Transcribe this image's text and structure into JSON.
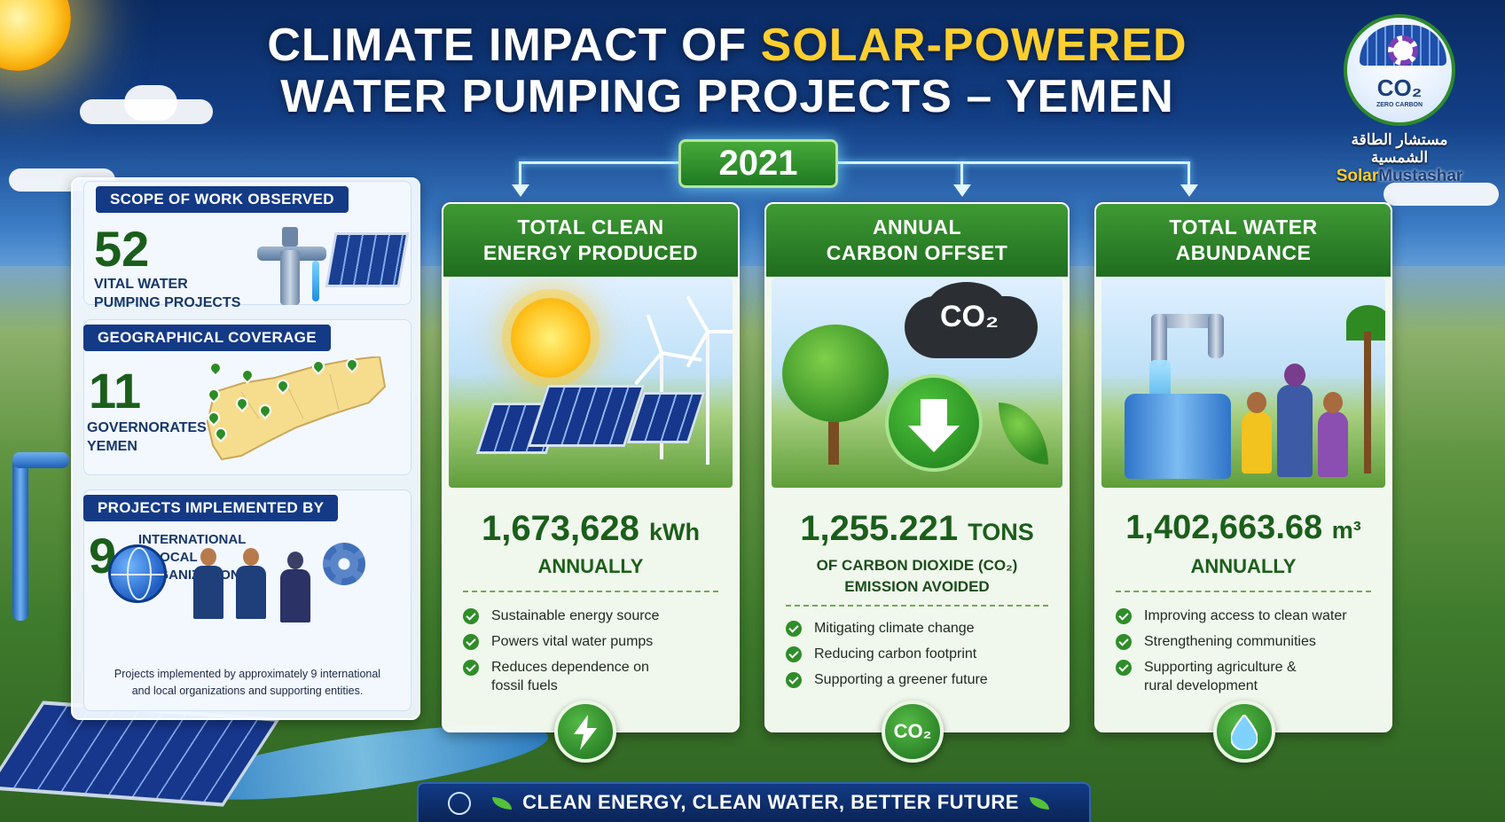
{
  "title": {
    "line1_a": "CLIMATE IMPACT OF ",
    "line1_b": "SOLAR-POWERED",
    "line2": "WATER PUMPING PROJECTS – YEMEN"
  },
  "logo": {
    "co2": "CO₂",
    "tag": "ZERO CARBON",
    "arabic": "مستشار الطاقة الشمسية",
    "name_a": "Solar",
    "name_b": "Mustashar"
  },
  "year": "2021",
  "scope": {
    "work_header": "SCOPE OF WORK OBSERVED",
    "work_number": "52",
    "work_label_1": "VITAL WATER",
    "work_label_2": "PUMPING PROJECTS",
    "geo_header": "GEOGRAPHICAL COVERAGE",
    "geo_number": "11",
    "geo_label_1": "GOVERNORATES",
    "geo_label_2": "YEMEN",
    "impl_header": "PROJECTS IMPLEMENTED BY",
    "impl_number": "9",
    "impl_label_1": "INTERNATIONAL",
    "impl_label_2": "& LOCAL",
    "impl_label_3": "ORGANIZATIONS",
    "note_1": "Projects implemented by approximately 9 international",
    "note_2": "and local organizations and supporting entities."
  },
  "cards": [
    {
      "header_1": "TOTAL CLEAN",
      "header_2": "ENERGY PRODUCED",
      "value": "1,673,628",
      "unit": "kWh",
      "sub": "ANNUALLY",
      "bullets": [
        "Sustainable energy source",
        "Powers vital water pumps",
        "Reduces dependence on fossil fuels"
      ],
      "badge_icon": "lightning-icon"
    },
    {
      "header_1": "ANNUAL",
      "header_2": "CARBON OFFSET",
      "value": "1,255.221",
      "unit": "TONS",
      "sub_1": "OF CARBON DIOXIDE (CO₂)",
      "sub_2": "EMISSION AVOIDED",
      "scene_label": "CO₂",
      "bullets": [
        "Mitigating climate change",
        "Reducing carbon footprint",
        "Supporting a greener future"
      ],
      "badge_label": "CO₂"
    },
    {
      "header_1": "TOTAL WATER",
      "header_2": "ABUNDANCE",
      "value": "1,402,663.68",
      "unit": "m³",
      "sub": "ANNUALLY",
      "bullets": [
        "Improving access to clean water",
        "Strengthening communities",
        "Supporting agriculture & rural development"
      ],
      "badge_icon": "water-drop-icon"
    }
  ],
  "footer": "CLEAN ENERGY, CLEAN WATER, BETTER FUTURE",
  "colors": {
    "navy": "#143a86",
    "green": "#1b5e1b",
    "accent_yellow": "#ffcf2e"
  }
}
